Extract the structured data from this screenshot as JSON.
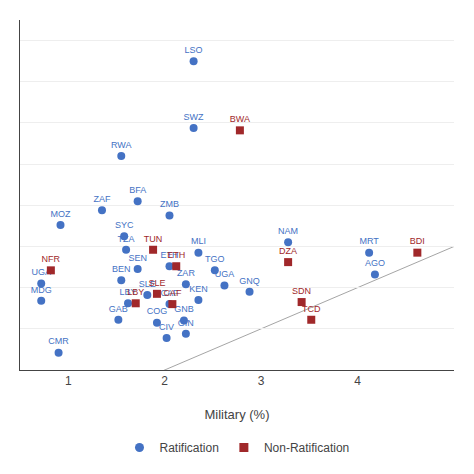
{
  "chart_data": {
    "type": "scatter",
    "xlabel": "Military (%)",
    "xlim": [
      0.5,
      5.0
    ],
    "ylim": [
      2.0,
      10.5
    ],
    "xticks": [
      1,
      2,
      3,
      4
    ],
    "yticks": [
      3,
      4,
      5,
      6,
      7,
      8,
      9,
      10
    ],
    "grid": true,
    "tick_labels": "x",
    "legend": "bottom",
    "series": [
      {
        "name": "Ratification",
        "color": "#4472C4",
        "marker": "circle",
        "labels": [
          "LSO",
          "SWZ",
          "RWA",
          "ZAF",
          "BFA",
          "MOZ",
          "SYC",
          "TZA",
          "ZMB",
          "MLI",
          "SEN",
          "BEN",
          "ETH",
          "TGO",
          "ZAR",
          "UGA",
          "KEN",
          "GNQ",
          "NAM",
          "MRT",
          "AGO",
          "UGA",
          "MDG",
          "LBY",
          "CAF",
          "GAB",
          "COG",
          "GNB",
          "GIN",
          "CIV",
          "CMR",
          "SLE"
        ],
        "x": [
          2.3,
          2.3,
          1.55,
          1.35,
          1.72,
          0.92,
          1.58,
          1.6,
          2.05,
          2.35,
          1.72,
          1.55,
          2.05,
          2.52,
          2.22,
          2.62,
          2.35,
          2.88,
          3.28,
          4.12,
          4.18,
          0.72,
          0.72,
          1.62,
          2.05,
          1.52,
          1.92,
          2.2,
          2.22,
          2.02,
          0.9,
          1.82
        ],
        "values": [
          9.5,
          7.88,
          7.2,
          5.88,
          6.1,
          5.52,
          5.25,
          4.92,
          5.75,
          4.85,
          4.45,
          4.18,
          4.52,
          4.42,
          4.08,
          4.05,
          3.7,
          3.9,
          5.1,
          4.85,
          4.32,
          4.1,
          3.68,
          3.62,
          3.6,
          3.22,
          3.15,
          3.2,
          2.88,
          2.78,
          2.42,
          3.82
        ]
      },
      {
        "name": "Non-Ratification",
        "color": "#A0282A",
        "marker": "square",
        "labels": [
          "BWA",
          "TUN",
          "NFR",
          "ETH",
          "SLE",
          "LBY",
          "CAF",
          "DZA",
          "SDN",
          "TCD",
          "BDI"
        ],
        "x": [
          2.78,
          1.88,
          0.82,
          2.12,
          1.92,
          1.7,
          2.08,
          3.28,
          3.42,
          3.52,
          4.62
        ],
        "values": [
          7.82,
          4.92,
          4.42,
          4.52,
          3.85,
          3.62,
          3.6,
          4.62,
          3.65,
          3.22,
          4.85
        ]
      }
    ]
  }
}
